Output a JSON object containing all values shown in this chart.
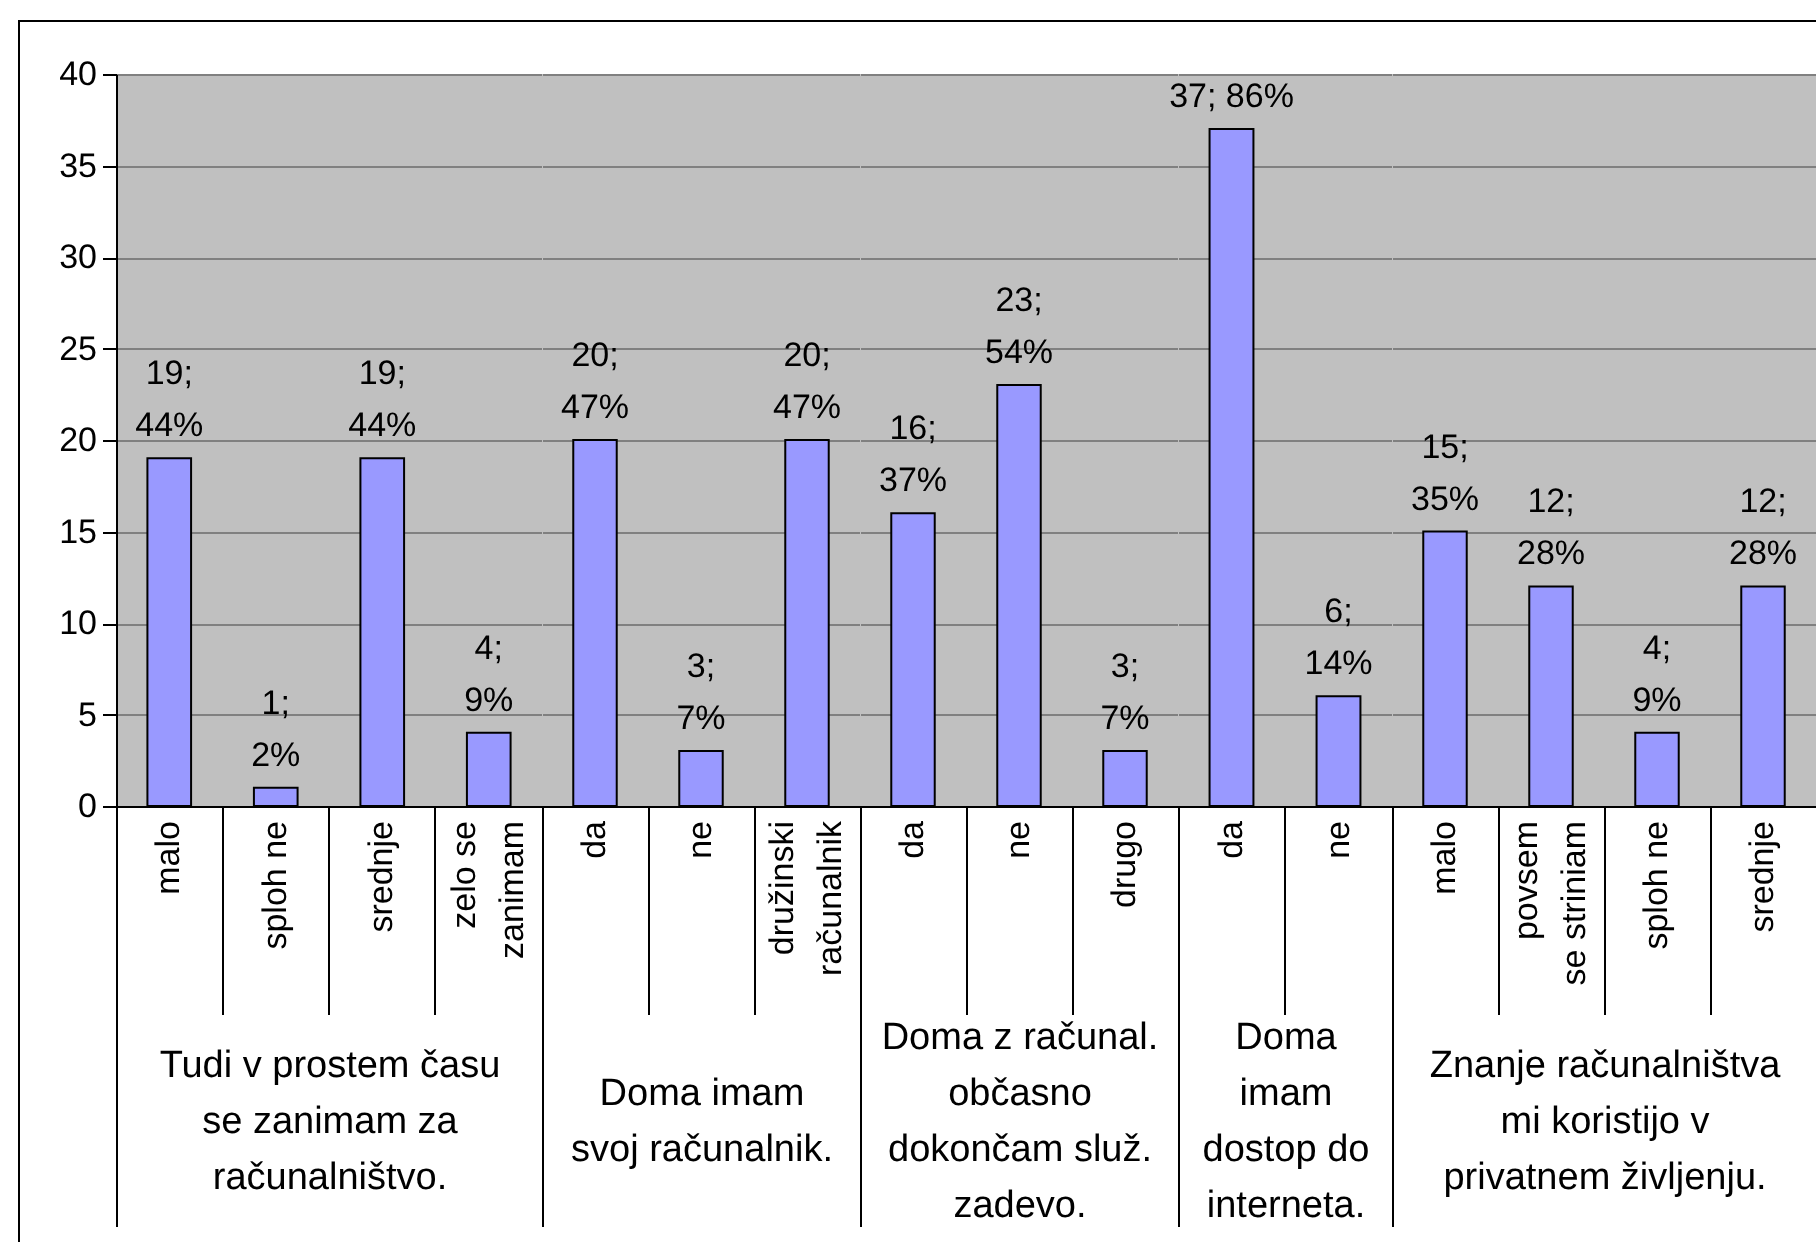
{
  "chart_data": [
    {
      "type": "bar",
      "xlabel": "Tudi v prostem času se zanimam za računalništvo.",
      "categories": [
        "malo",
        "sploh ne",
        "srednje",
        "zelo se zanimam"
      ],
      "values": [
        19,
        1,
        19,
        4
      ],
      "value_labels": [
        "19; 44%",
        "1; 2%",
        "19; 44%",
        "4; 9%"
      ],
      "color": "#9999ff",
      "ylim": [
        0,
        40
      ],
      "yticks": [
        0,
        5,
        10,
        15,
        20,
        25,
        30,
        35,
        40
      ],
      "grid": "y"
    },
    {
      "type": "bar",
      "xlabel": "Doma imam svoj računalnik.",
      "categories": [
        "da",
        "ne",
        "družinski računalnik"
      ],
      "values": [
        20,
        3,
        20
      ],
      "value_labels": [
        "20; 47%",
        "3; 7%",
        "20; 47%"
      ],
      "color": "#9999ff",
      "ylim": [
        0,
        40
      ],
      "yticks": [
        0,
        5,
        10,
        15,
        20,
        25,
        30,
        35,
        40
      ],
      "grid": "y",
      "tick_labels": "x"
    },
    {
      "type": "bar",
      "xlabel": "Doma z računal. občasno dokončam služ. zadevo.",
      "categories": [
        "da",
        "ne",
        "drugo"
      ],
      "values": [
        16,
        23,
        3
      ],
      "value_labels": [
        "16; 37%",
        "23; 54%",
        "3; 7%"
      ],
      "color": "#9999ff",
      "ylim": [
        0,
        40
      ],
      "yticks": [
        0,
        5,
        10,
        15,
        20,
        25,
        30,
        35,
        40
      ],
      "grid": "y",
      "tick_labels": "x"
    },
    {
      "type": "bar",
      "xlabel": "Doma imam dostop do interneta.",
      "categories": [
        "da",
        "ne"
      ],
      "values": [
        37,
        6
      ],
      "value_labels": [
        "37; 86%",
        "6; 14%"
      ],
      "color": "#9999ff",
      "ylim": [
        0,
        40
      ],
      "yticks": [
        0,
        5,
        10,
        15,
        20,
        25,
        30,
        35,
        40
      ],
      "grid": "y",
      "tick_labels": "x"
    },
    {
      "type": "bar",
      "xlabel": "Znanje računalništva mi koristijo v privatnem življenju.",
      "categories": [
        "malo",
        "povsem se striniam",
        "sploh ne",
        "srednje"
      ],
      "values": [
        15,
        12,
        4,
        12
      ],
      "value_labels": [
        "15; 35%",
        "12; 28%",
        "4; 9%",
        "12; 28%"
      ],
      "color": "#9999ff",
      "ylim": [
        0,
        40
      ],
      "yticks": [
        0,
        5,
        10,
        15,
        20,
        25,
        30,
        35,
        40
      ],
      "grid": "y",
      "tick_labels": "x"
    }
  ]
}
